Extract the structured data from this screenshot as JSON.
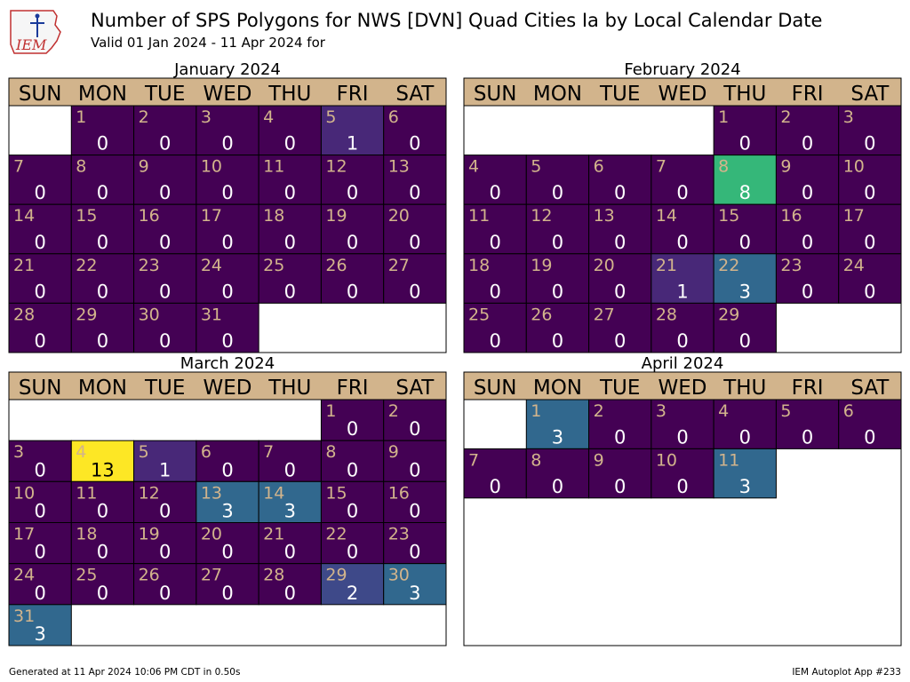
{
  "header": {
    "logo_text": "IEM",
    "title": "Number of SPS Polygons for NWS [DVN] Quad Cities Ia by Local Calendar Date",
    "subtitle": "Valid 01 Jan 2024 - 11 Apr 2024 for"
  },
  "footer": {
    "generated": "Generated at 11 Apr 2024 10:06 PM CDT in 0.50s",
    "app": "IEM Autoplot App #233"
  },
  "weekday_labels": [
    "SUN",
    "MON",
    "TUE",
    "WED",
    "THU",
    "FRI",
    "SAT"
  ],
  "colors": {
    "header_band": "#d2b48c",
    "day_number": "#d2b48c",
    "count_text": "#ffffff",
    "scale": {
      "0": "#440154",
      "1": "#482878",
      "2": "#3e4989",
      "3": "#31688e",
      "8": "#35b779",
      "13": "#fde725"
    }
  },
  "chart_data": {
    "type": "heatmap",
    "title": "Number of SPS Polygons for NWS [DVN] Quad Cities Ia by Local Calendar Date",
    "subtitle": "Valid 01 Jan 2024 - 11 Apr 2024 for",
    "months": [
      {
        "name": "January 2024",
        "first_weekday": 1,
        "values": [
          0,
          0,
          0,
          0,
          1,
          0,
          0,
          0,
          0,
          0,
          0,
          0,
          0,
          0,
          0,
          0,
          0,
          0,
          0,
          0,
          0,
          0,
          0,
          0,
          0,
          0,
          0,
          0,
          0,
          0,
          0
        ]
      },
      {
        "name": "February 2024",
        "first_weekday": 4,
        "values": [
          0,
          0,
          0,
          0,
          0,
          0,
          0,
          8,
          0,
          0,
          0,
          0,
          0,
          0,
          0,
          0,
          0,
          0,
          0,
          0,
          1,
          3,
          0,
          0,
          0,
          0,
          0,
          0,
          0
        ]
      },
      {
        "name": "March 2024",
        "first_weekday": 5,
        "values": [
          0,
          0,
          0,
          13,
          1,
          0,
          0,
          0,
          0,
          0,
          0,
          0,
          3,
          3,
          0,
          0,
          0,
          0,
          0,
          0,
          0,
          0,
          0,
          0,
          0,
          0,
          0,
          0,
          2,
          3,
          3
        ]
      },
      {
        "name": "April 2024",
        "first_weekday": 1,
        "values": [
          3,
          0,
          0,
          0,
          0,
          0,
          0,
          0,
          0,
          0,
          3
        ]
      }
    ]
  }
}
